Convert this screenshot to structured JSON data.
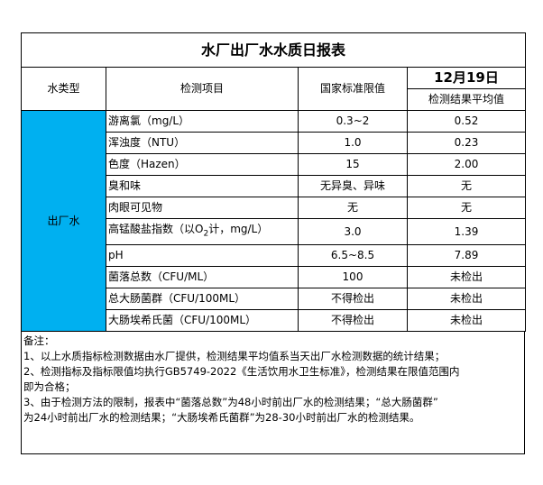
{
  "title": "水厂出厂水水质日报表",
  "headers": {
    "water_type": "水类型",
    "item": "检测项目",
    "standard": "国家标准限值",
    "date": "12月19日",
    "result": "检测结果平均值"
  },
  "water_type_value": "出厂水",
  "accent_color": "#00b0f0",
  "rows": [
    {
      "item": "游离氯（mg/L）",
      "standard": "0.3~2",
      "result": "0.52"
    },
    {
      "item": "浑浊度（NTU）",
      "standard": "1.0",
      "result": "0.23"
    },
    {
      "item": "色度（Hazen）",
      "standard": "15",
      "result": "2.00"
    },
    {
      "item": "臭和味",
      "standard": "无异臭、异味",
      "result": "无"
    },
    {
      "item": "肉眼可见物",
      "standard": "无",
      "result": "无"
    },
    {
      "item_pre": "高锰酸盐指数（以O",
      "item_sub": "2",
      "item_post": "计，mg/L）",
      "standard": "3.0",
      "result": "1.39"
    },
    {
      "item": "pH",
      "standard": "6.5~8.5",
      "result": "7.89"
    },
    {
      "item": "菌落总数（CFU/ML）",
      "standard": "100",
      "result": "未检出"
    },
    {
      "item": "总大肠菌群（CFU/100ML）",
      "standard": "不得检出",
      "result": "未检出"
    },
    {
      "item": "大肠埃希氏菌（CFU/100ML）",
      "standard": "不得检出",
      "result": "未检出"
    }
  ],
  "notes": [
    "备注：",
    "1、以上水质指标检测数据由水厂提供，检测结果平均值系当天出厂水检测数据的统计结果；",
    "2、检测指标及指标限值均执行GB5749-2022《生活饮用水卫生标准》，检测结果在限值范围内",
    "即为合格；",
    "3、由于检测方法的限制，报表中“菌落总数”为48小时前出厂水的检测结果；“总大肠菌群”",
    "为24小时前出厂水的检测结果；“大肠埃希氏菌群”为28-30小时前出厂水的检测结果。"
  ]
}
